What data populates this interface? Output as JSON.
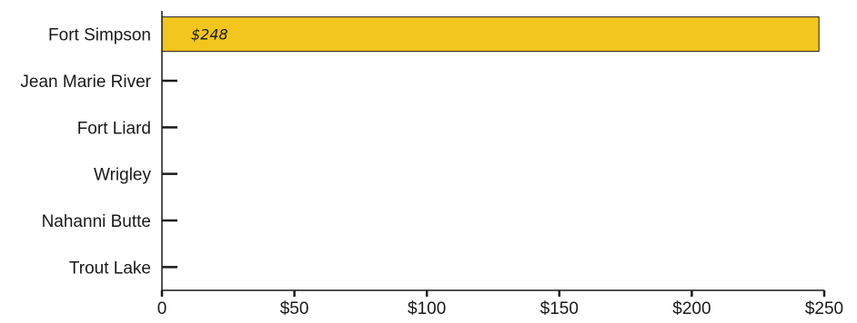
{
  "chart_data": {
    "type": "bar",
    "orientation": "horizontal",
    "categories": [
      "Fort Simpson",
      "Jean Marie River",
      "Fort Liard",
      "Wrigley",
      "Nahanni Butte",
      "Trout Lake"
    ],
    "values": [
      248,
      0,
      0,
      0,
      0,
      0
    ],
    "data_labels": [
      "$248",
      "",
      "",
      "",
      "",
      ""
    ],
    "xlim": [
      0,
      250
    ],
    "x_ticks": [
      0,
      50,
      100,
      150,
      200,
      250
    ],
    "x_tick_labels": [
      "0",
      "$50",
      "$100",
      "$150",
      "$200",
      "$250"
    ],
    "title": "",
    "xlabel": "",
    "ylabel": "",
    "grid": false,
    "bar_color": "#f2c51f"
  }
}
